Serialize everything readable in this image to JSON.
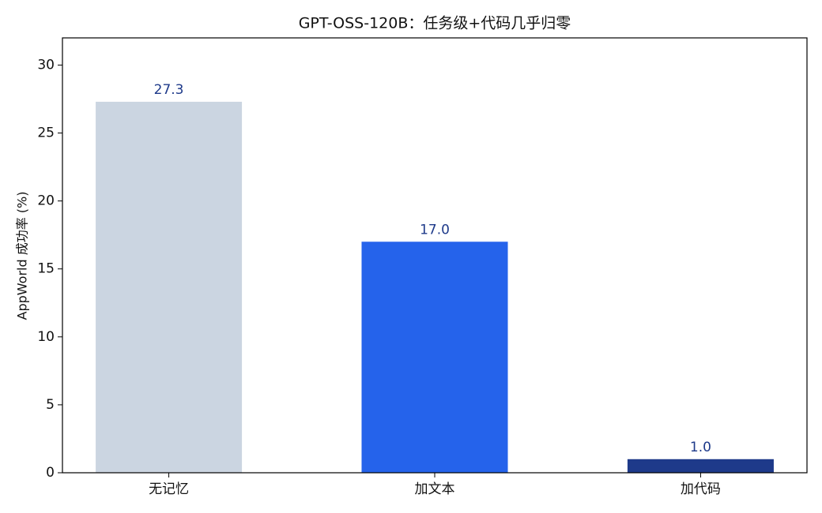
{
  "chart_data": {
    "type": "bar",
    "title": "GPT-OSS-120B：任务级+代码几乎归零",
    "ylabel": "AppWorld 成功率 (%)",
    "categories": [
      "无记忆",
      "加文本",
      "加代码"
    ],
    "values": [
      27.3,
      17.0,
      1.0
    ],
    "value_labels": [
      "27.3",
      "17.0",
      "1.0"
    ],
    "colors": [
      "#cbd5e1",
      "#2563eb",
      "#1e3a8a"
    ],
    "ylim": [
      0,
      32
    ],
    "yticks": [
      0,
      5,
      10,
      15,
      20,
      25,
      30
    ],
    "grid": false
  }
}
